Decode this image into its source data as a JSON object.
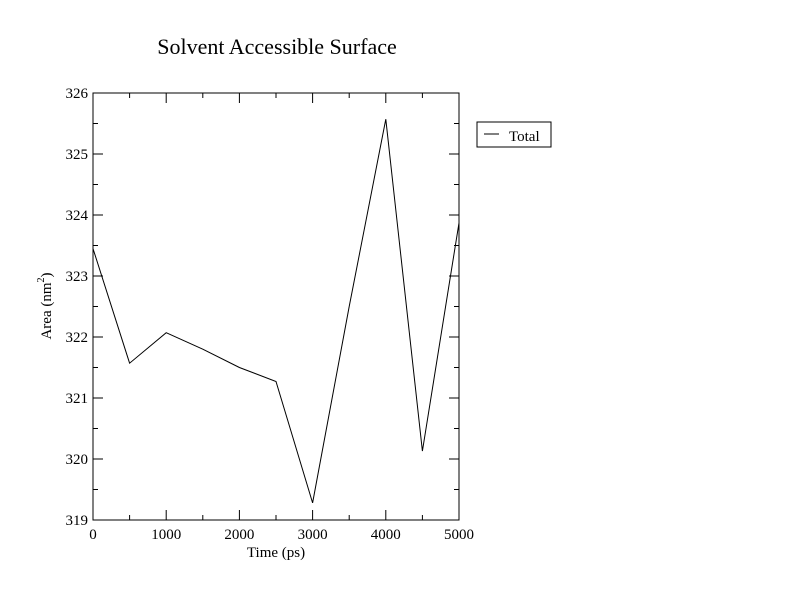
{
  "chart_data": {
    "type": "line",
    "title": "Solvent Accessible Surface",
    "xlabel": "Time (ps)",
    "ylabel": "Area (nm",
    "ylabel_sup": "2",
    "ylabel_close": ")",
    "xlim": [
      0,
      5000
    ],
    "ylim": [
      319,
      326
    ],
    "x_ticks": [
      0,
      1000,
      2000,
      3000,
      4000,
      5000
    ],
    "y_ticks": [
      319,
      320,
      321,
      322,
      323,
      324,
      325,
      326
    ],
    "legend_position": "right, outside plot",
    "series": [
      {
        "name": "Total",
        "color": "#000000",
        "x": [
          0,
          500,
          1000,
          1500,
          2000,
          2500,
          3000,
          3500,
          4000,
          4500,
          5000
        ],
        "y": [
          323.45,
          321.57,
          322.07,
          321.8,
          321.5,
          321.27,
          319.28,
          322.5,
          325.57,
          320.13,
          323.87
        ]
      }
    ]
  }
}
